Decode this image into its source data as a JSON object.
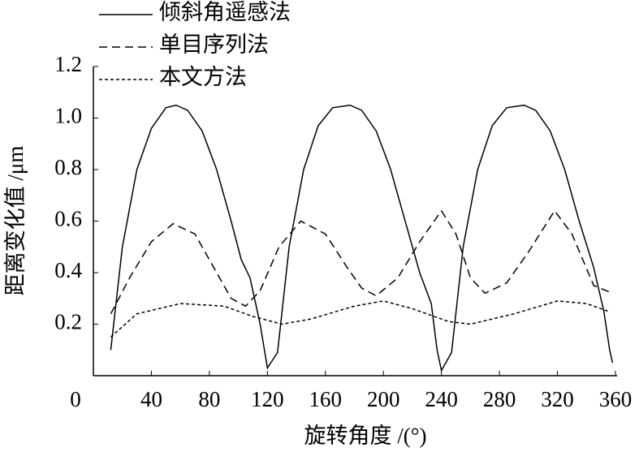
{
  "chart_data": {
    "type": "line",
    "xlabel": "旋转角度 /(°)",
    "ylabel": "距离变化值 /μm",
    "xlim": [
      0,
      360
    ],
    "xticks": [
      0,
      40,
      80,
      120,
      160,
      200,
      240,
      280,
      320,
      360
    ],
    "ylim": [
      0,
      1.2
    ],
    "yticks": [
      0.2,
      0.4,
      0.6,
      0.8,
      {
        "value": 1.0,
        "label": "1.0"
      },
      1.2
    ],
    "legend": "upper left",
    "series": [
      {
        "name": "倾斜角遥感法",
        "color": "#000000",
        "dash": "solid",
        "x": [
          12,
          20,
          30,
          40,
          50,
          57,
          65,
          75,
          85,
          95,
          102,
          108,
          115,
          120,
          127,
          135,
          145,
          155,
          165,
          177,
          185,
          195,
          205,
          215,
          225,
          233,
          237,
          240,
          247,
          255,
          265,
          275,
          285,
          297,
          305,
          315,
          325,
          335,
          345,
          352,
          356,
          358
        ],
        "values": [
          0.1,
          0.5,
          0.8,
          0.96,
          1.04,
          1.05,
          1.03,
          0.95,
          0.8,
          0.6,
          0.45,
          0.38,
          0.2,
          0.03,
          0.09,
          0.5,
          0.8,
          0.97,
          1.04,
          1.05,
          1.03,
          0.95,
          0.8,
          0.6,
          0.4,
          0.28,
          0.1,
          0.02,
          0.09,
          0.5,
          0.8,
          0.97,
          1.04,
          1.05,
          1.03,
          0.95,
          0.8,
          0.6,
          0.42,
          0.25,
          0.1,
          0.05
        ]
      },
      {
        "name": "单目序列法",
        "color": "#000000",
        "dash": "dashed",
        "x": [
          12,
          25,
          40,
          55,
          70,
          85,
          95,
          105,
          115,
          128,
          143,
          160,
          175,
          185,
          195,
          210,
          225,
          240,
          250,
          260,
          270,
          285,
          300,
          318,
          330,
          345,
          358
        ],
        "values": [
          0.24,
          0.38,
          0.52,
          0.59,
          0.55,
          0.4,
          0.3,
          0.27,
          0.33,
          0.5,
          0.6,
          0.55,
          0.42,
          0.34,
          0.31,
          0.38,
          0.52,
          0.64,
          0.55,
          0.38,
          0.32,
          0.36,
          0.48,
          0.64,
          0.55,
          0.35,
          0.32
        ]
      },
      {
        "name": "本文方法",
        "color": "#000000",
        "dash": "dotted",
        "x": [
          12,
          30,
          60,
          90,
          110,
          130,
          150,
          180,
          200,
          220,
          245,
          260,
          290,
          320,
          340,
          355
        ],
        "values": [
          0.15,
          0.24,
          0.28,
          0.27,
          0.23,
          0.2,
          0.22,
          0.27,
          0.29,
          0.26,
          0.21,
          0.2,
          0.24,
          0.29,
          0.28,
          0.25
        ]
      }
    ]
  }
}
